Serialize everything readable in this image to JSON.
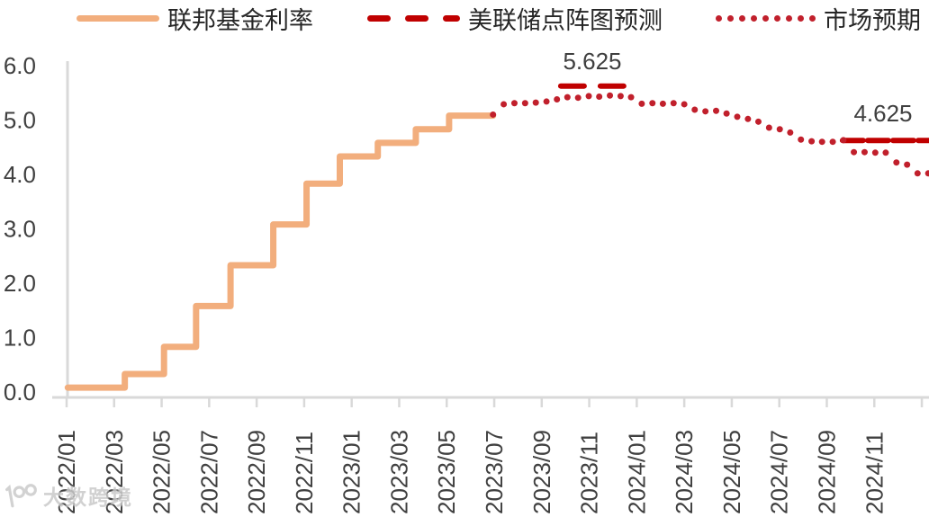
{
  "watermark": {
    "text": "大数跨境",
    "logo": "100-logo"
  },
  "chart_data": {
    "type": "line",
    "title": "",
    "xlabel": "",
    "ylabel": "",
    "ylim": [
      0,
      6
    ],
    "ytick_labels": [
      "0.0",
      "1.0",
      "2.0",
      "3.0",
      "4.0",
      "5.0",
      "6.0"
    ],
    "xtick_labels": [
      "2022/01",
      "2022/03",
      "2022/05",
      "2022/07",
      "2022/09",
      "2022/11",
      "2023/01",
      "2023/03",
      "2023/05",
      "2023/07",
      "2023/09",
      "2023/11",
      "2024/01",
      "2024/03",
      "2024/05",
      "2024/07",
      "2024/09",
      "2024/11"
    ],
    "months_per_tick": 2,
    "extra_unlabeled_ticks": 1,
    "grid": false,
    "legend_position": "top",
    "series": [
      {
        "name": "联邦基金利率",
        "type": "step",
        "color": "#F2AE7D",
        "points": [
          [
            0.05,
            0.08
          ],
          [
            2.45,
            0.33
          ],
          [
            4.1,
            0.83
          ],
          [
            5.45,
            1.58
          ],
          [
            6.9,
            2.33
          ],
          [
            8.7,
            3.08
          ],
          [
            10.1,
            3.83
          ],
          [
            11.5,
            4.33
          ],
          [
            13.1,
            4.58
          ],
          [
            14.7,
            4.83
          ],
          [
            16.1,
            5.08
          ]
        ],
        "end_month": 17.95
      },
      {
        "name": "美联储点阵图预测",
        "type": "dashed-segments",
        "color": "#C00000",
        "segments": [
          {
            "label": "5.625",
            "value": 5.625,
            "start_month": 20.8,
            "end_month": 23.45,
            "dash": [
              26,
              18
            ]
          },
          {
            "label": "4.625",
            "value": 4.625,
            "start_month": 32.66,
            "end_month": 36.3,
            "dash": [
              23,
              5
            ]
          }
        ]
      },
      {
        "name": "市场预期",
        "type": "dots",
        "color": "#C1202C",
        "points": [
          [
            17.95,
            5.1
          ],
          [
            18.4,
            5.29
          ],
          [
            18.85,
            5.31
          ],
          [
            19.3,
            5.31
          ],
          [
            19.75,
            5.32
          ],
          [
            20.2,
            5.34
          ],
          [
            20.64,
            5.38
          ],
          [
            21.08,
            5.42
          ],
          [
            21.53,
            5.41
          ],
          [
            21.98,
            5.44
          ],
          [
            22.42,
            5.43
          ],
          [
            22.87,
            5.45
          ],
          [
            23.32,
            5.44
          ],
          [
            23.76,
            5.42
          ],
          [
            24.21,
            5.3
          ],
          [
            24.66,
            5.31
          ],
          [
            25.1,
            5.3
          ],
          [
            25.55,
            5.31
          ],
          [
            26.0,
            5.29
          ],
          [
            26.44,
            5.19
          ],
          [
            26.89,
            5.16
          ],
          [
            27.34,
            5.17
          ],
          [
            27.78,
            5.12
          ],
          [
            28.23,
            5.06
          ],
          [
            28.68,
            5.02
          ],
          [
            29.12,
            4.97
          ],
          [
            29.57,
            4.86
          ],
          [
            30.02,
            4.83
          ],
          [
            30.46,
            4.77
          ],
          [
            30.91,
            4.64
          ],
          [
            31.36,
            4.61
          ],
          [
            31.8,
            4.6
          ],
          [
            32.25,
            4.6
          ],
          [
            32.7,
            4.63
          ],
          [
            33.14,
            4.41
          ],
          [
            33.59,
            4.41
          ],
          [
            34.04,
            4.4
          ],
          [
            34.48,
            4.4
          ],
          [
            34.93,
            4.22
          ],
          [
            35.38,
            4.18
          ],
          [
            35.82,
            4.02
          ],
          [
            36.27,
            4.02
          ]
        ]
      }
    ]
  }
}
